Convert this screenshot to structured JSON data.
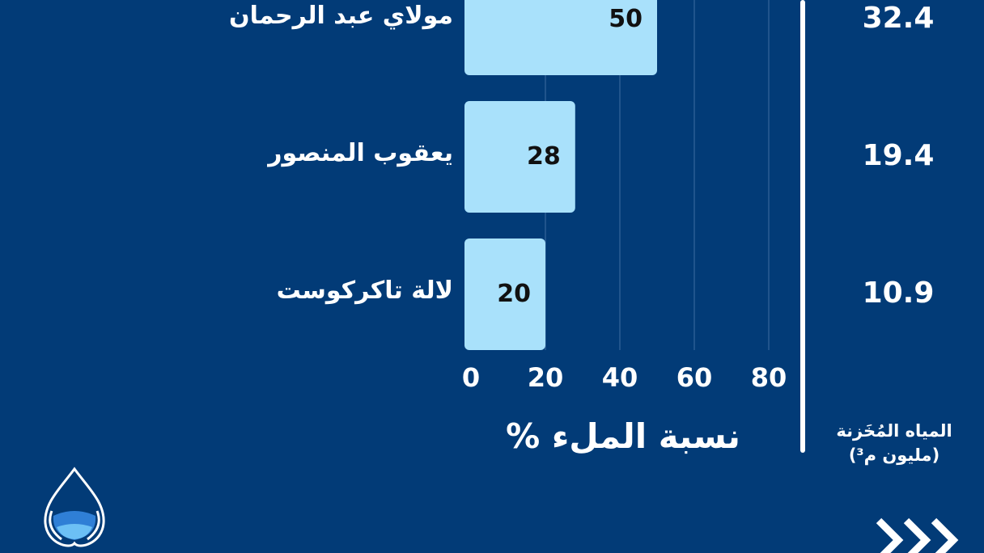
{
  "chart_data": {
    "type": "bar",
    "orientation": "horizontal",
    "categories": [
      "مولاي عبد الرحمان",
      "يعقوب المنصور",
      "لالة تاكركوست"
    ],
    "values": [
      50,
      28,
      20
    ],
    "xlabel": "نسبة الملء %",
    "xlim": [
      0,
      100
    ],
    "xticks": [
      "0",
      "20",
      "40",
      "60",
      "80"
    ],
    "grid": true,
    "bar_color": "#a9e1fb",
    "secondary_column": {
      "title_line1": "المياه المُخَزنة",
      "title_line2": "(مليون م³)",
      "values": [
        "32.4",
        "19.4",
        "10.9"
      ]
    }
  },
  "colors": {
    "background": "#023b77",
    "text": "#ffffff"
  }
}
